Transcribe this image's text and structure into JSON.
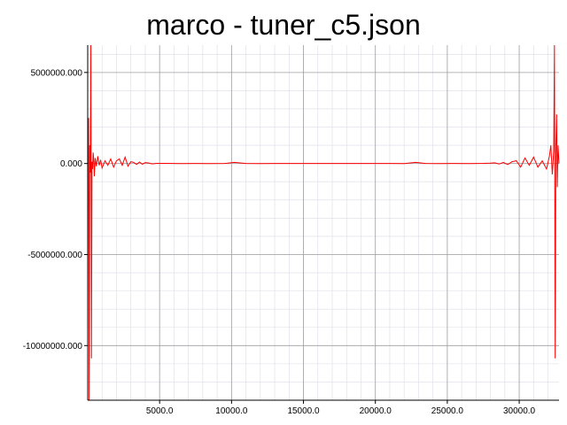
{
  "chart_data": {
    "type": "line",
    "title": "marco - tuner_c5.json",
    "xlabel": "",
    "ylabel": "",
    "xlim": [
      0,
      32768
    ],
    "ylim": [
      -13000000,
      6500000
    ],
    "x_ticks": [
      5000,
      10000,
      15000,
      20000,
      25000,
      30000
    ],
    "x_tick_labels": [
      "5000.0",
      "10000.0",
      "15000.0",
      "20000.0",
      "25000.0",
      "30000.0"
    ],
    "y_ticks": [
      5000000,
      0,
      -5000000,
      -10000000
    ],
    "y_tick_labels": [
      "5000000.000",
      "0.000",
      "-5000000.000",
      "-10000000.000"
    ],
    "grid": true,
    "minor_grid": true,
    "legend": "none",
    "series": [
      {
        "color": "#ff0000",
        "x": [
          0,
          60,
          100,
          140,
          180,
          220,
          260,
          300,
          340,
          380,
          420,
          460,
          520,
          600,
          700,
          800,
          900,
          1000,
          1200,
          1400,
          1600,
          1800,
          2000,
          2200,
          2400,
          2600,
          2800,
          3000,
          3200,
          3400,
          3600,
          3800,
          4000,
          4200,
          4500,
          4800,
          5500,
          6500,
          7500,
          8500,
          9500,
          10200,
          11000,
          12000,
          13000,
          14000,
          15000,
          16000,
          17000,
          18000,
          19000,
          20000,
          21000,
          22000,
          22800,
          23500,
          24500,
          25500,
          26500,
          27500,
          28000,
          28300,
          28600,
          28900,
          29200,
          29500,
          29800,
          30100,
          30400,
          30700,
          31000,
          31300,
          31600,
          31900,
          32100,
          32200,
          32300,
          32400,
          32450,
          32500,
          32550,
          32600,
          32650,
          32700,
          32768
        ],
        "y": [
          0,
          2500000,
          -13000000,
          1000000,
          -500000,
          6500000,
          -10700000,
          100000,
          -300000,
          600000,
          200000,
          -700000,
          300000,
          -150000,
          400000,
          -100000,
          200000,
          -250000,
          150000,
          -100000,
          250000,
          -200000,
          150000,
          250000,
          -100000,
          350000,
          -150000,
          100000,
          60000,
          -50000,
          80000,
          -40000,
          50000,
          30000,
          -20000,
          10000,
          5000,
          -4000,
          3000,
          -3000,
          0,
          60000,
          2000,
          -1000,
          2000,
          0,
          0,
          0,
          0,
          0,
          0,
          0,
          0,
          -1000,
          60000,
          2000,
          -3000,
          3000,
          -4000,
          5000,
          20000,
          40000,
          -30000,
          60000,
          -60000,
          100000,
          150000,
          -200000,
          300000,
          -100000,
          350000,
          -200000,
          150000,
          -300000,
          400000,
          1000000,
          -600000,
          700000,
          6500000,
          -10700000,
          1000000,
          2700000,
          -1300000,
          1000000,
          0
        ]
      }
    ]
  }
}
